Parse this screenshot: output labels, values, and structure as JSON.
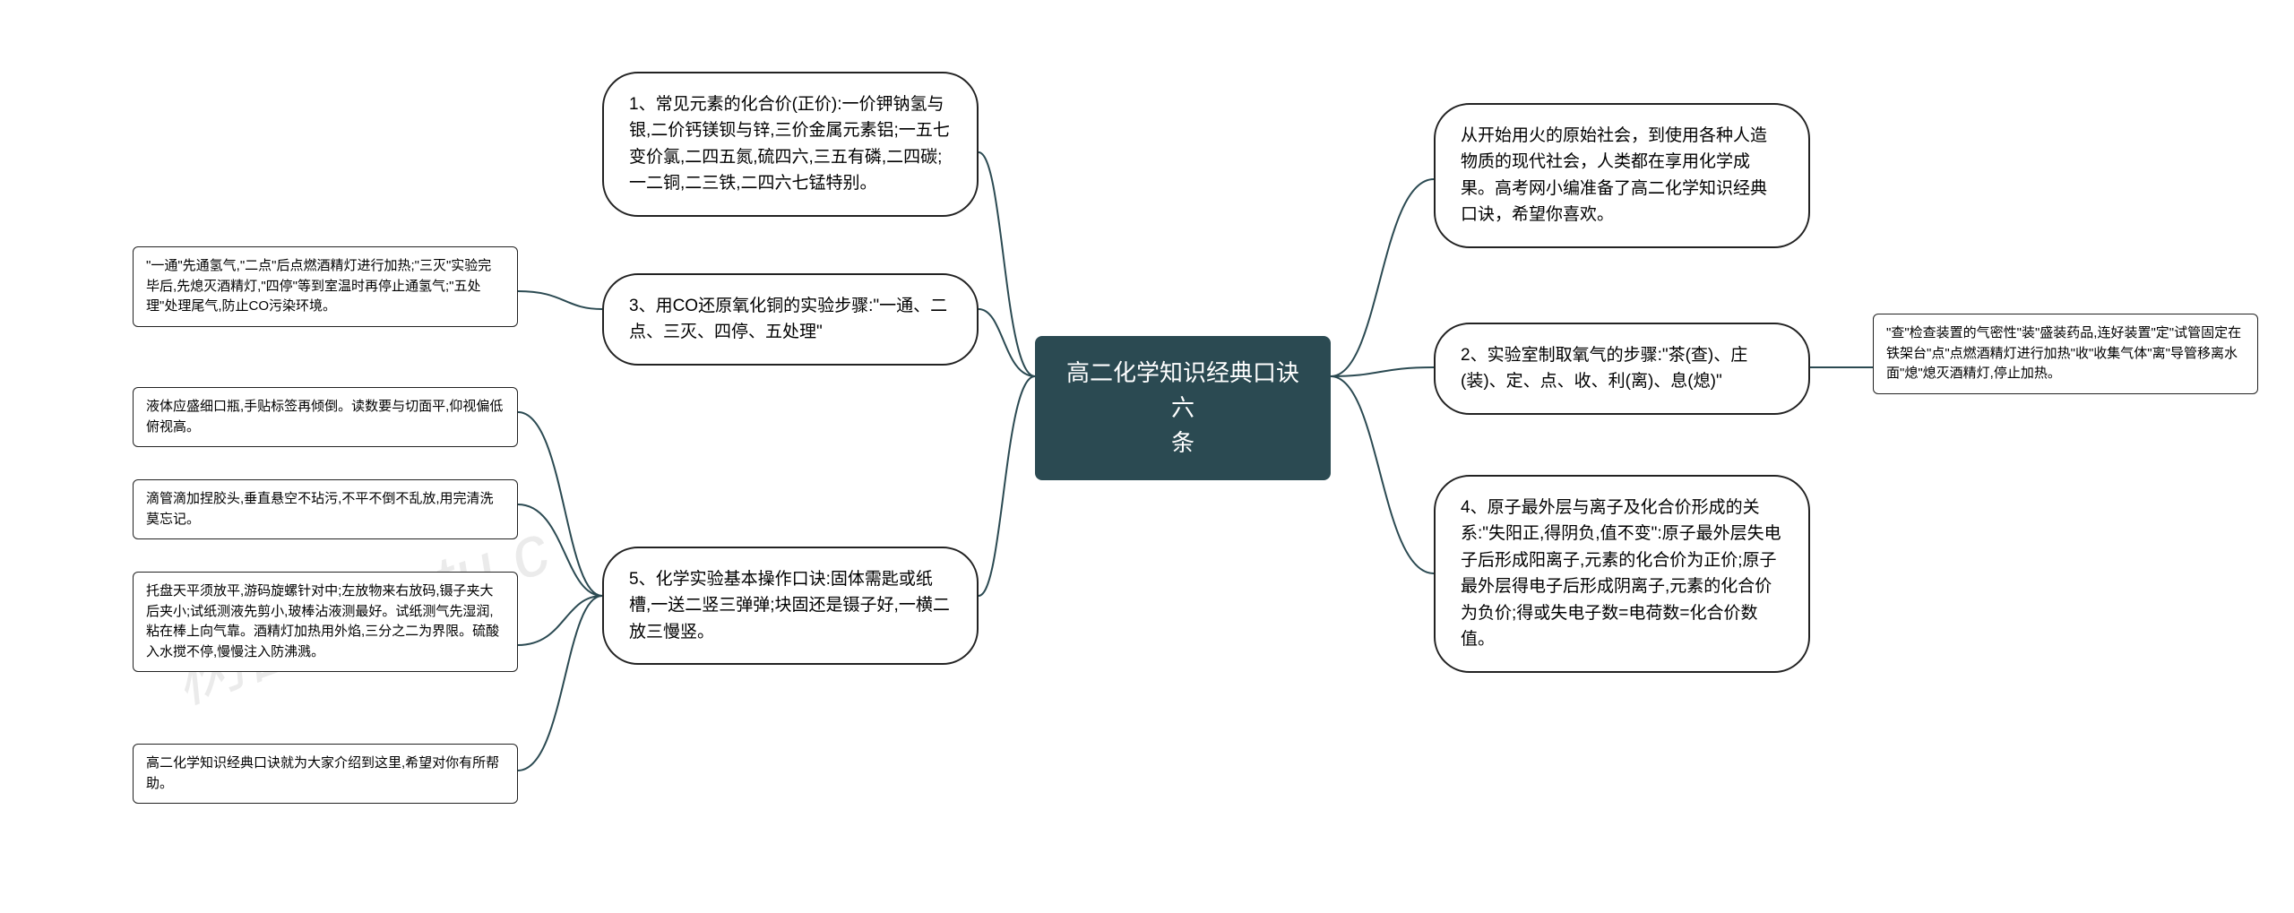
{
  "watermarks": {
    "text1": "树图 shutu.c",
    "text2": "hutu"
  },
  "center": {
    "title": "高二化学知识经典口诀六\n条"
  },
  "left": {
    "n1": "1、常见元素的化合价(正价):一价钾钠氢与银,二价钙镁钡与锌,三价金属元素铝;一五七变价氯,二四五氮,硫四六,三五有磷,二四碳;一二铜,二三铁,二四六七锰特别。",
    "n3": "3、用CO还原氧化铜的实验步骤:\"一通、二点、三灭、四停、五处理\"",
    "n3_detail": "\"一通\"先通氢气,\"二点\"后点燃酒精灯进行加热;\"三灭\"实验完毕后,先熄灭酒精灯,\"四停\"等到室温时再停止通氢气;\"五处理\"处理尾气,防止CO污染环境。",
    "n5": "5、化学实验基本操作口诀:固体需匙或纸槽,一送二竖三弹弹;块固还是镊子好,一横二放三慢竖。",
    "n5_d1": "液体应盛细口瓶,手贴标签再倾倒。读数要与切面平,仰视偏低俯视高。",
    "n5_d2": "滴管滴加捏胶头,垂直悬空不玷污,不平不倒不乱放,用完清洗莫忘记。",
    "n5_d3": "托盘天平须放平,游码旋螺针对中;左放物来右放码,镊子夹大后夹小;试纸测液先剪小,玻棒沾液测最好。试纸测气先湿润,粘在棒上向气靠。酒精灯加热用外焰,三分之二为界限。硫酸入水搅不停,慢慢注入防沸溅。",
    "n5_d4": "高二化学知识经典口诀就为大家介绍到这里,希望对你有所帮助。"
  },
  "right": {
    "r1": "从开始用火的原始社会，到使用各种人造物质的现代社会，人类都在享用化学成果。高考网小编准备了高二化学知识经典口诀，希望你喜欢。",
    "r2": "2、实验室制取氧气的步骤:\"茶(查)、庄(装)、定、点、收、利(离)、息(熄)\"",
    "r2_detail": "\"查\"检查装置的气密性\"装\"盛装药品,连好装置\"定\"试管固定在铁架台\"点\"点燃酒精灯进行加热\"收\"收集气体\"离\"导管移离水面\"熄\"熄灭酒精灯,停止加热。",
    "r4": "4、原子最外层与离子及化合价形成的关系:\"失阳正,得阴负,值不变\":原子最外层失电子后形成阳离子,元素的化合价为正价;原子最外层得电子后形成阴离子,元素的化合价为负价;得或失电子数=电荷数=化合价数值。"
  },
  "style": {
    "center_bg": "#2b4a52",
    "center_color": "#ffffff",
    "border_color": "#222222",
    "connector_color": "#2b4a52",
    "bg": "#ffffff"
  }
}
